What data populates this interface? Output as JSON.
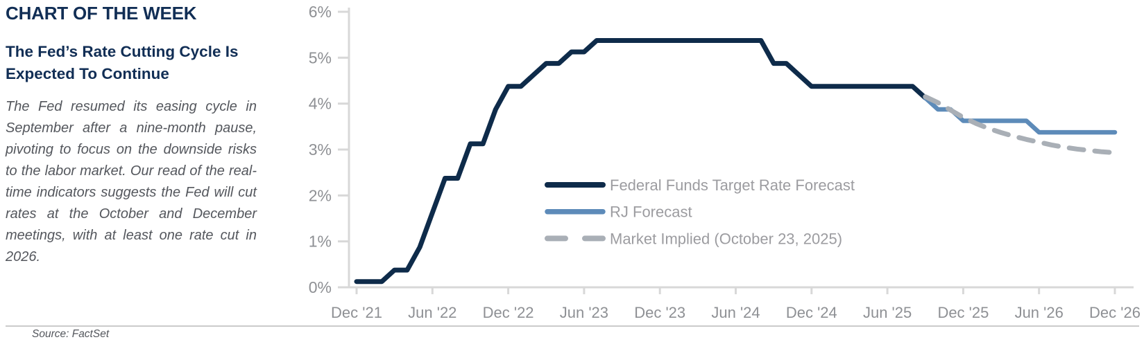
{
  "panel": {
    "kicker": "CHART OF THE WEEK",
    "headline": "The Fed’s Rate Cutting Cycle Is Expected To Continue",
    "body": "The Fed resumed its easing cycle in September after a nine-month pause, pivoting to focus on the downside risks to the labor market. Our read of the real-time indicators suggests the Fed will cut rates at the October and December meetings, with at least one rate cut in 2026.",
    "source": "Source: FactSet"
  },
  "chart_data": {
    "type": "line",
    "title": "",
    "xlabel": "",
    "ylabel": "",
    "x_unit": "months, monthly points from Dec 2021 (index 0) to Dec 2026 (index 60)",
    "x_tick_month_indices": [
      0,
      6,
      12,
      18,
      24,
      30,
      36,
      42,
      48,
      54,
      60
    ],
    "x_tick_labels": [
      "Dec '21",
      "Jun '22",
      "Dec '22",
      "Jun '23",
      "Dec '23",
      "Jun '24",
      "Dec '24",
      "Jun '25",
      "Dec '25",
      "Jun '26",
      "Dec '26"
    ],
    "y_tick_labels": [
      "0%",
      "1%",
      "2%",
      "3%",
      "4%",
      "5%",
      "6%"
    ],
    "y_tick_values": [
      0,
      1,
      2,
      3,
      4,
      5,
      6
    ],
    "ylim": [
      0,
      6
    ],
    "grid": false,
    "legend_position": "inside middle-right",
    "axis_color": "#d8d8d8",
    "tick_label_color": "#8e9094",
    "legend_text_color": "#9c9ca0",
    "series": [
      {
        "name": "Federal Funds Target Rate Forecast",
        "color": "#0e2b4a",
        "style": "solid",
        "stroke_width": 7,
        "values": [
          0.125,
          0.125,
          0.125,
          0.375,
          0.375,
          0.875,
          1.625,
          2.375,
          2.375,
          3.125,
          3.125,
          3.875,
          4.375,
          4.375,
          4.625,
          4.875,
          4.875,
          5.125,
          5.125,
          5.375,
          5.375,
          5.375,
          5.375,
          5.375,
          5.375,
          5.375,
          5.375,
          5.375,
          5.375,
          5.375,
          5.375,
          5.375,
          5.375,
          4.875,
          4.875,
          4.625,
          4.375,
          4.375,
          4.375,
          4.375,
          4.375,
          4.375,
          4.375,
          4.375,
          4.375,
          4.125,
          null,
          null,
          null,
          null,
          null,
          null,
          null,
          null,
          null,
          null,
          null,
          null,
          null,
          null,
          null
        ]
      },
      {
        "name": "RJ Forecast",
        "color": "#5d8bb9",
        "style": "solid",
        "stroke_width": 6.5,
        "values": [
          null,
          null,
          null,
          null,
          null,
          null,
          null,
          null,
          null,
          null,
          null,
          null,
          null,
          null,
          null,
          null,
          null,
          null,
          null,
          null,
          null,
          null,
          null,
          null,
          null,
          null,
          null,
          null,
          null,
          null,
          null,
          null,
          null,
          null,
          null,
          null,
          null,
          null,
          null,
          null,
          null,
          null,
          null,
          null,
          null,
          4.125,
          3.875,
          3.875,
          3.625,
          3.625,
          3.625,
          3.625,
          3.625,
          3.625,
          3.375,
          3.375,
          3.375,
          3.375,
          3.375,
          3.375,
          3.375
        ]
      },
      {
        "name": "Market Implied (October 23, 2025)",
        "color": "#a9afb6",
        "style": "dashed",
        "stroke_width": 7,
        "values": [
          null,
          null,
          null,
          null,
          null,
          null,
          null,
          null,
          null,
          null,
          null,
          null,
          null,
          null,
          null,
          null,
          null,
          null,
          null,
          null,
          null,
          null,
          null,
          null,
          null,
          null,
          null,
          null,
          null,
          null,
          null,
          null,
          null,
          null,
          null,
          null,
          null,
          null,
          null,
          null,
          null,
          null,
          null,
          null,
          null,
          4.15,
          4.02,
          3.86,
          3.7,
          3.57,
          3.46,
          3.37,
          3.29,
          3.22,
          3.16,
          3.1,
          3.05,
          3.01,
          2.98,
          2.95,
          2.93
        ]
      }
    ]
  }
}
